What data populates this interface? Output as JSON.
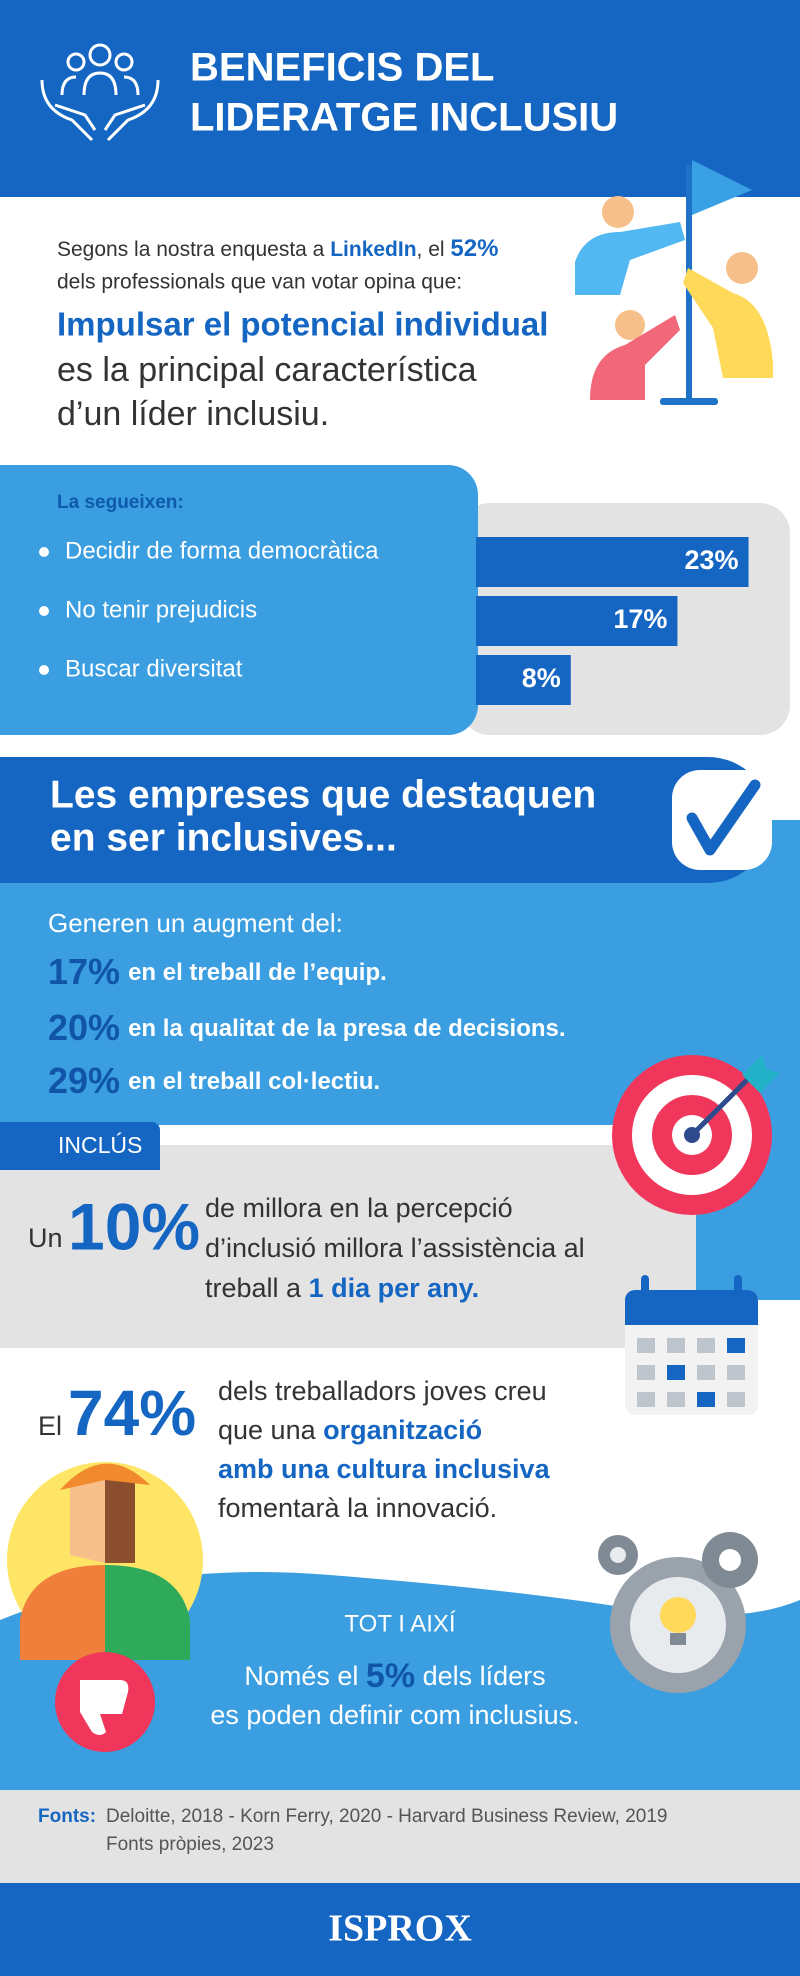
{
  "header": {
    "title": [
      "BENEFICIS DEL",
      "LIDERATGE INCLUSIU"
    ]
  },
  "survey": {
    "line1": [
      "Segons la nostra enquesta a ",
      "LinkedIn",
      ", el ",
      "52%"
    ],
    "line2": "dels professionals que van votar opina que:",
    "highlight": "Impulsar el potencial individual",
    "statement": [
      "es la principal característica",
      "d’un líder inclusiu."
    ]
  },
  "followers": {
    "heading": "La segueixen:",
    "categories": [
      "Decidir de forma democràtica",
      "No tenir prejudicis",
      "Buscar diversitat"
    ],
    "values": [
      23,
      17,
      8
    ],
    "value_labels": [
      "23%",
      "17%",
      "8%"
    ]
  },
  "companies": {
    "title": [
      "Les empreses que destaquen",
      "en ser inclusives..."
    ],
    "intro": "Generen un augment del:",
    "items": [
      {
        "value": "17%",
        "text": "en el treball de l’equip."
      },
      {
        "value": "20%",
        "text": "en la qualitat de la presa de decisions."
      },
      {
        "value": "29%",
        "text": "en el treball col·lectiu."
      }
    ]
  },
  "inclusion": {
    "tag": "INCLÚS",
    "prefix": "Un",
    "value": "10%",
    "lines": [
      "de millora en la percepció",
      "d’inclusió millora l’assistència al"
    ],
    "line3": [
      "treball a ",
      "1 dia per any."
    ]
  },
  "young": {
    "prefix": "El",
    "value": "74%",
    "line1": "dels treballadors joves creu",
    "line2": [
      "que una ",
      "organització"
    ],
    "line3": "amb una cultura inclusiva",
    "line4": "fomentarà la innovació."
  },
  "however": {
    "label": "TOT I AIXÍ",
    "line1": [
      "Només el ",
      "5%",
      " dels líders"
    ],
    "line2": "es poden definir com inclusius."
  },
  "sources": {
    "label": "Fonts:",
    "lines": [
      "Deloitte, 2018 - Korn Ferry, 2020 - Harvard Business Review, 2019",
      "Fonts pròpies, 2023"
    ]
  },
  "footer": {
    "brand": "ISPROX"
  }
}
